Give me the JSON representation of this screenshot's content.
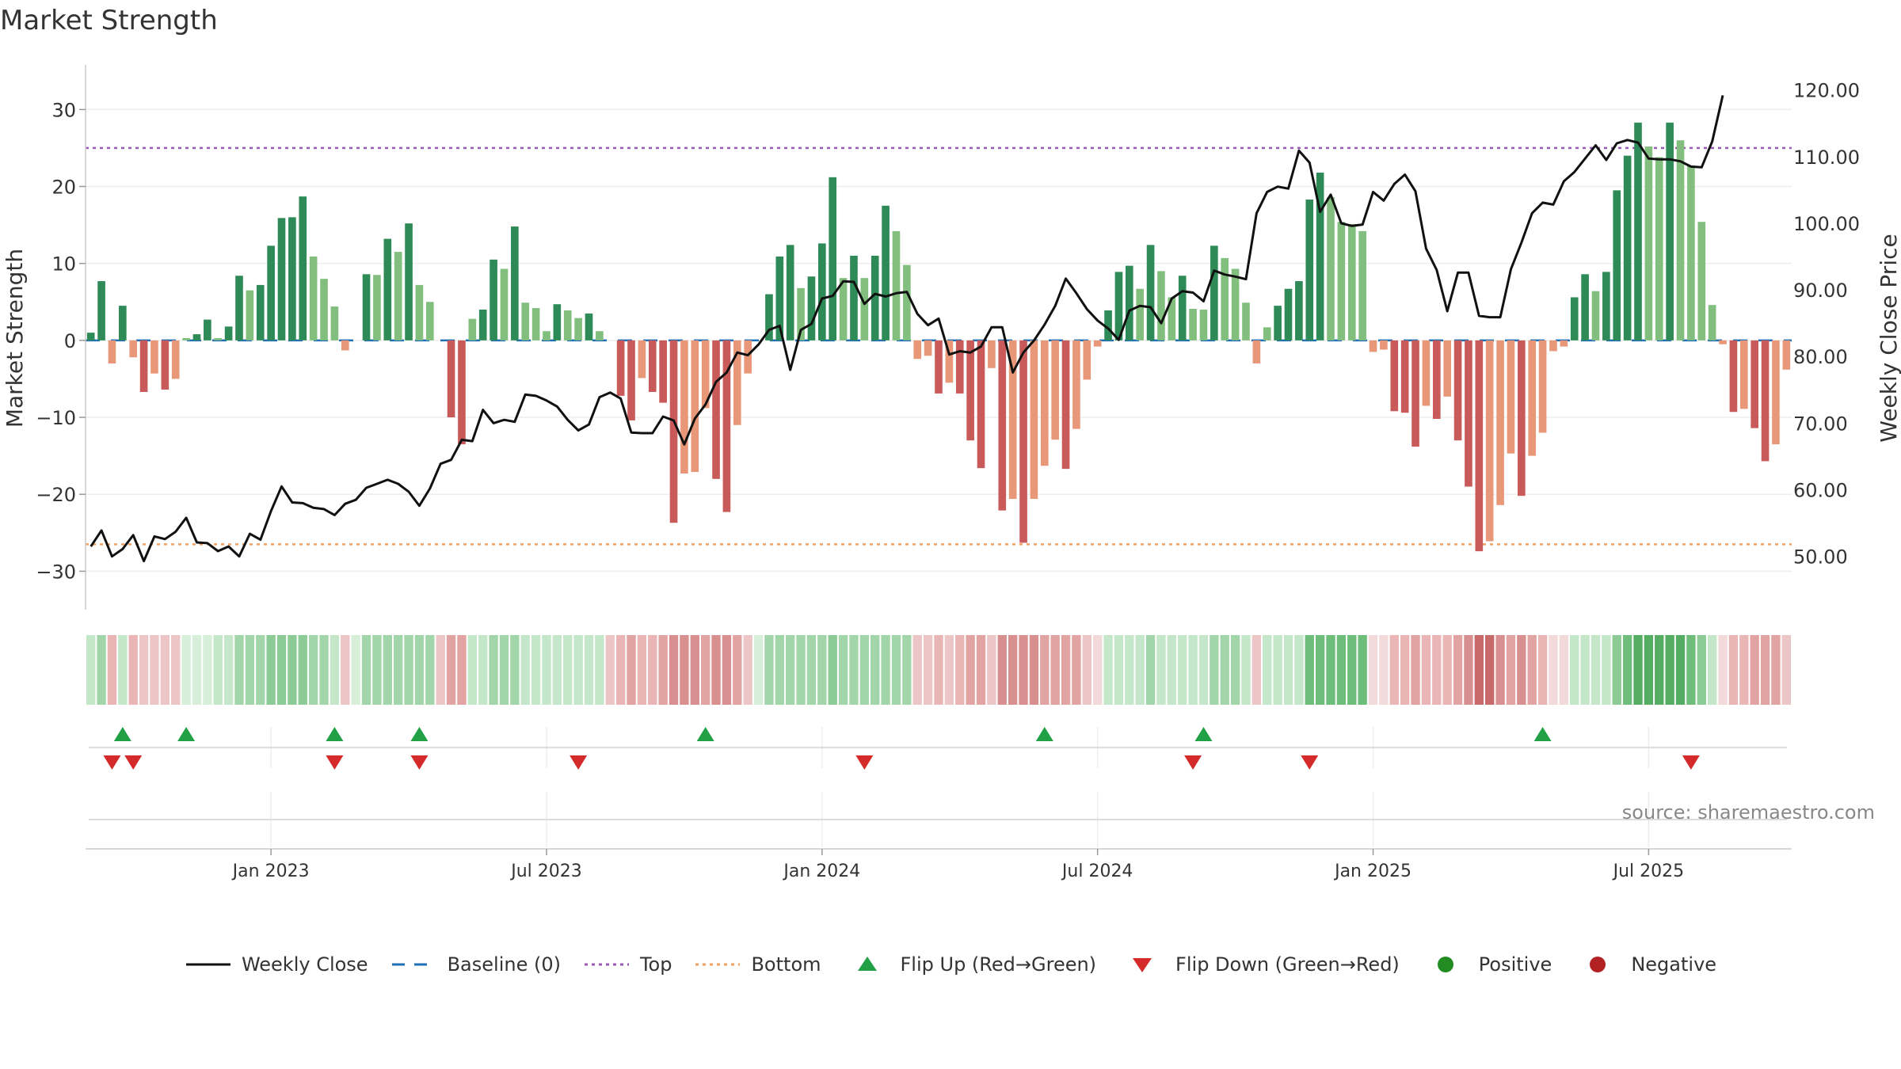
{
  "chart_data": {
    "type": "bar",
    "title": "Market Strength",
    "ylabel": "Market Strength",
    "y2label": "Weekly Close Price",
    "ylim": [
      -35,
      36
    ],
    "y2lim": [
      42,
      124
    ],
    "yticks": [
      30,
      20,
      10,
      0,
      -10,
      -20,
      -30
    ],
    "ytick_labels": [
      "30",
      "20",
      "10",
      "0",
      "−10",
      "−20",
      "−30"
    ],
    "y2ticks": [
      120,
      110,
      100,
      90,
      80,
      70,
      60,
      50
    ],
    "y2tick_labels": [
      "120.00",
      "110.00",
      "100.00",
      "90.00",
      "80.00",
      "70.00",
      "60.00",
      "50.00"
    ],
    "x_ticks": [
      {
        "index": 17,
        "label": "Jan 2023"
      },
      {
        "index": 43,
        "label": "Jul 2023"
      },
      {
        "index": 69,
        "label": "Jan 2024"
      },
      {
        "index": 95,
        "label": "Jul 2024"
      },
      {
        "index": 121,
        "label": "Jan 2025"
      },
      {
        "index": 147,
        "label": "Jul 2025"
      }
    ],
    "top_level": 25,
    "bottom_level": -26.5,
    "strength": [
      1,
      7.7,
      -3,
      4.5,
      -2.2,
      -6.7,
      -4.3,
      -6.4,
      -5,
      0.3,
      0.8,
      2.7,
      0.3,
      1.8,
      8.4,
      6.5,
      7.2,
      12.3,
      15.9,
      16,
      18.7,
      10.9,
      8,
      4.4,
      -1.3,
      0,
      8.6,
      8.5,
      13.2,
      11.5,
      15.2,
      7.2,
      5,
      0,
      -10,
      -13.5,
      2.8,
      4,
      10.5,
      9.3,
      14.8,
      4.9,
      4.2,
      1.2,
      4.7,
      3.9,
      2.9,
      3.5,
      1.2,
      0,
      -7.2,
      -10.4,
      -4.9,
      -6.7,
      -8.1,
      -23.7,
      -17.3,
      -17.1,
      -8.8,
      -18,
      -22.3,
      -11,
      -4.3,
      0,
      6,
      10.9,
      12.4,
      6.8,
      8.3,
      12.6,
      21.2,
      8.1,
      11,
      8.1,
      11,
      17.5,
      14.2,
      9.8,
      -2.4,
      -2,
      -6.9,
      -5.5,
      -6.9,
      -13,
      -16.6,
      -3.6,
      -22.1,
      -20.6,
      -26.3,
      -20.6,
      -16.3,
      -12.9,
      -16.7,
      -11.5,
      -5.1,
      -0.8,
      3.9,
      8.9,
      9.7,
      6.7,
      12.4,
      9,
      5.6,
      8.4,
      4.1,
      4,
      12.3,
      10.7,
      9.3,
      4.9,
      -3,
      1.7,
      4.5,
      6.7,
      7.7,
      18.3,
      21.8,
      18.6,
      15.4,
      15.1,
      14.2,
      -1.5,
      -1.2,
      -9.2,
      -9.4,
      -13.8,
      -8.5,
      -10.2,
      -7.3,
      -13,
      -19,
      -27.4,
      -26.1,
      -21.4,
      -14.7,
      -20.2,
      -15,
      -12,
      -1.4,
      -0.8,
      5.6,
      8.6,
      6.4,
      8.9,
      19.5,
      24,
      28.3,
      25.2,
      23.8,
      28.3,
      26,
      22.7,
      15.4,
      4.6,
      -0.5,
      -9.3,
      -8.9,
      -11.4,
      -15.7,
      -13.5,
      -3.8
    ],
    "price": [
      51.5,
      53.9,
      50,
      51.1,
      53.2,
      49.3,
      53,
      52.6,
      53.7,
      55.8,
      52.1,
      52,
      50.8,
      51.5,
      50,
      53.4,
      52.5,
      56.8,
      60.5,
      58.1,
      58,
      57.3,
      57.1,
      56.2,
      57.9,
      58.5,
      60.3,
      60.9,
      61.5,
      60.9,
      59.7,
      57.6,
      60.2,
      63.9,
      64.5,
      67.5,
      67.3,
      72,
      70,
      70.5,
      70.2,
      74.3,
      74.1,
      73.4,
      72.5,
      70.5,
      68.9,
      69.8,
      73.9,
      74.6,
      73.7,
      68.6,
      68.5,
      68.5,
      71,
      70.4,
      66.8,
      70.7,
      72.8,
      76.2,
      77.6,
      80.6,
      80.2,
      81.8,
      84,
      84.6,
      78,
      84,
      84.9,
      88.7,
      89.1,
      91.3,
      91.2,
      87.9,
      89.4,
      89,
      89.5,
      89.7,
      86.4,
      84.7,
      85.7,
      80.3,
      80.8,
      80.6,
      81.5,
      84.4,
      84.4,
      77.6,
      80.6,
      82.4,
      84.8,
      87.6,
      91.7,
      89.5,
      87.1,
      85.4,
      84.2,
      82.5,
      86.9,
      87.6,
      87.4,
      85,
      88.7,
      89.8,
      89.6,
      88.3,
      92.9,
      92.3,
      92,
      91.6,
      101.5,
      104.7,
      105.5,
      105.2,
      110.9,
      109.1,
      101.7,
      104.3,
      100,
      99.6,
      99.8,
      104.7,
      103.4,
      105.9,
      107.3,
      104.8,
      96.2,
      93,
      86.8,
      92.6,
      92.6,
      86.1,
      85.9,
      85.9,
      93.1,
      97.1,
      101.5,
      103.1,
      102.8,
      106.3,
      107.7,
      109.7,
      111.7,
      109.5,
      112,
      112.5,
      112.1,
      109.7,
      109.6,
      109.6,
      109.3,
      108.5,
      108.4,
      112.3,
      119.2
    ],
    "zone_shades": [
      "#c4e6c9",
      "#a3d5aa",
      "#e9b5b5",
      "#c4e6c9",
      "#e9b5b5",
      "#ecc6c6",
      "#ecc6c6",
      "#ecc6c6",
      "#ecc6c6",
      "#d7eed9",
      "#d7eed9",
      "#d7eed9",
      "#c4e6c9",
      "#c4e6c9",
      "#a3d5aa",
      "#a3d5aa",
      "#a3d5aa",
      "#8dcb96",
      "#8dcb96",
      "#8dcb96",
      "#8dcb96",
      "#a3d5aa",
      "#a3d5aa",
      "#c4e6c9",
      "#ecc6c6",
      "#d7eed9",
      "#a3d5aa",
      "#a3d5aa",
      "#a3d5aa",
      "#a3d5aa",
      "#a3d5aa",
      "#a3d5aa",
      "#a3d5aa",
      "#ecc6c6",
      "#e2a3a3",
      "#e2a3a3",
      "#c4e6c9",
      "#c4e6c9",
      "#a3d5aa",
      "#a3d5aa",
      "#a3d5aa",
      "#c4e6c9",
      "#c4e6c9",
      "#c4e6c9",
      "#c4e6c9",
      "#c4e6c9",
      "#c4e6c9",
      "#c4e6c9",
      "#c4e6c9",
      "#ecc6c6",
      "#e9b5b5",
      "#e2a3a3",
      "#e9b5b5",
      "#e9b5b5",
      "#e2a3a3",
      "#d88f8f",
      "#d88f8f",
      "#d88f8f",
      "#e2a3a3",
      "#d88f8f",
      "#d88f8f",
      "#e2a3a3",
      "#ecc6c6",
      "#d7eed9",
      "#a3d5aa",
      "#a3d5aa",
      "#a3d5aa",
      "#a3d5aa",
      "#a3d5aa",
      "#a3d5aa",
      "#8dcb96",
      "#a3d5aa",
      "#a3d5aa",
      "#a3d5aa",
      "#a3d5aa",
      "#a3d5aa",
      "#a3d5aa",
      "#a3d5aa",
      "#ecc6c6",
      "#ecc6c6",
      "#e9b5b5",
      "#ecc6c6",
      "#e9b5b5",
      "#e2a3a3",
      "#e2a3a3",
      "#ecc6c6",
      "#d88f8f",
      "#d88f8f",
      "#d88f8f",
      "#d88f8f",
      "#e2a3a3",
      "#e2a3a3",
      "#e2a3a3",
      "#e2a3a3",
      "#ecc6c6",
      "#f3dada",
      "#c4e6c9",
      "#c4e6c9",
      "#c4e6c9",
      "#c4e6c9",
      "#a3d5aa",
      "#c4e6c9",
      "#c4e6c9",
      "#c4e6c9",
      "#c4e6c9",
      "#c4e6c9",
      "#a3d5aa",
      "#a3d5aa",
      "#a3d5aa",
      "#c4e6c9",
      "#ecc6c6",
      "#c4e6c9",
      "#c4e6c9",
      "#c4e6c9",
      "#c4e6c9",
      "#6fbd7b",
      "#6fbd7b",
      "#6fbd7b",
      "#6fbd7b",
      "#6fbd7b",
      "#6fbd7b",
      "#f3dada",
      "#f3dada",
      "#e9b5b5",
      "#e9b5b5",
      "#e2a3a3",
      "#e9b5b5",
      "#e9b5b5",
      "#e9b5b5",
      "#e2a3a3",
      "#d88f8f",
      "#c96a6a",
      "#c96a6a",
      "#d88f8f",
      "#e2a3a3",
      "#d88f8f",
      "#e2a3a3",
      "#e9b5b5",
      "#f3dada",
      "#f3dada",
      "#c4e6c9",
      "#c4e6c9",
      "#c4e6c9",
      "#c4e6c9",
      "#8dcb96",
      "#6fbd7b",
      "#55ad63",
      "#55ad63",
      "#55ad63",
      "#55ad63",
      "#55ad63",
      "#6fbd7b",
      "#8dcb96",
      "#c4e6c9",
      "#f3dada",
      "#e9b5b5",
      "#e9b5b5",
      "#e2a3a3",
      "#e2a3a3",
      "#e2a3a3",
      "#ecc6c6"
    ],
    "flip_up_indices": [
      3,
      9,
      23,
      31,
      58,
      90,
      105,
      137
    ],
    "flip_down_indices": [
      2,
      4,
      23,
      31,
      46,
      73,
      104,
      115,
      151
    ],
    "source_label": "source: sharemaestro.com",
    "colors": {
      "strong_green": "#2e8b57",
      "light_green": "#82bf7f",
      "strong_red": "#c95a5a",
      "light_red": "#e89878",
      "price_line": "#111111",
      "baseline": "#1f6fb5",
      "top": "#9b59b6",
      "bottom": "#f0a060",
      "flip_up": "#22a045",
      "flip_down": "#d42a2a",
      "positive": "#228b22",
      "negative": "#b22222"
    },
    "legend": [
      {
        "key": "weekly_close",
        "label": "Weekly Close",
        "symbol": "line-solid",
        "color": "#111111"
      },
      {
        "key": "baseline",
        "label": "Baseline (0)",
        "symbol": "line-dashed",
        "color": "#1f6fb5"
      },
      {
        "key": "top",
        "label": "Top",
        "symbol": "line-dotted",
        "color": "#9b59b6"
      },
      {
        "key": "bottom",
        "label": "Bottom",
        "symbol": "line-dotted",
        "color": "#f0a060"
      },
      {
        "key": "flip_up",
        "label": "Flip Up (Red→Green)",
        "symbol": "triangle-up",
        "color": "#22a045"
      },
      {
        "key": "flip_down",
        "label": "Flip Down (Green→Red)",
        "symbol": "triangle-down",
        "color": "#d42a2a"
      },
      {
        "key": "positive",
        "label": "Positive",
        "symbol": "circle",
        "color": "#228b22"
      },
      {
        "key": "negative",
        "label": "Negative",
        "symbol": "circle",
        "color": "#b22222"
      }
    ]
  }
}
